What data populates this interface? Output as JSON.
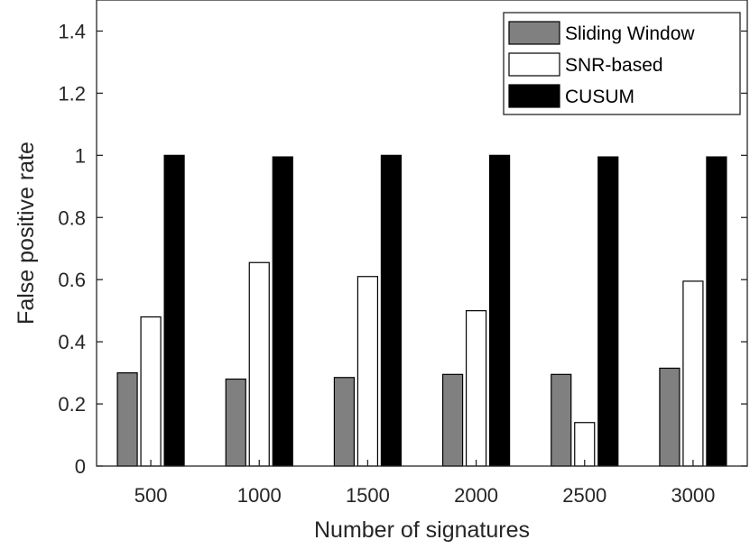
{
  "chart_data": {
    "type": "bar",
    "categories": [
      "500",
      "1000",
      "1500",
      "2000",
      "2500",
      "3000"
    ],
    "series": [
      {
        "name": "Sliding Window",
        "color": "#808080",
        "values": [
          0.3,
          0.28,
          0.285,
          0.295,
          0.295,
          0.315
        ]
      },
      {
        "name": "SNR-based",
        "color": "#ffffff",
        "values": [
          0.48,
          0.655,
          0.61,
          0.5,
          0.14,
          0.595
        ]
      },
      {
        "name": "CUSUM",
        "color": "#000000",
        "values": [
          1.0,
          0.995,
          1.0,
          1.0,
          0.995,
          0.995
        ]
      }
    ],
    "xlabel": "Number of signatures",
    "ylabel": "False positive rate",
    "ylim": [
      0,
      1.5
    ],
    "yticks": [
      "0",
      "0.2",
      "0.4",
      "0.6",
      "0.8",
      "1",
      "1.2",
      "1.4"
    ],
    "ytick_values": [
      0,
      0.2,
      0.4,
      0.6,
      0.8,
      1.0,
      1.2,
      1.4
    ],
    "grid": false,
    "legend_position": "top-right"
  }
}
